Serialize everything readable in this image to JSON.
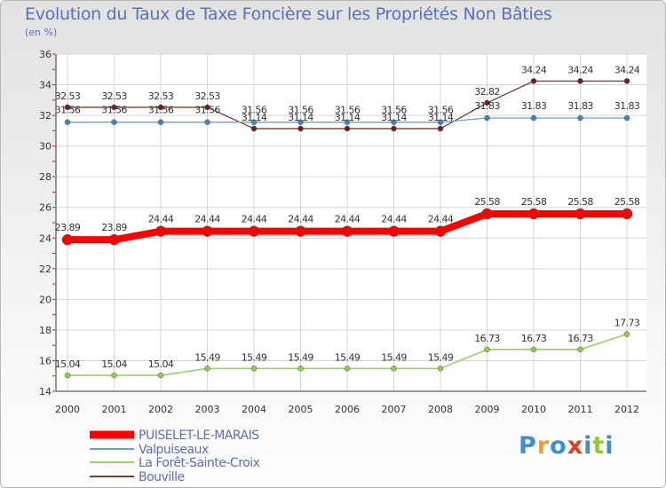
{
  "chart_data": {
    "type": "line",
    "title": "Evolution du Taux de Taxe Foncière sur les Propriétés Non Bâties",
    "ylabel": "(en %)",
    "xlabel": "",
    "x": [
      "2000",
      "2001",
      "2002",
      "2003",
      "2004",
      "2005",
      "2006",
      "2007",
      "2008",
      "2009",
      "2010",
      "2011",
      "2012"
    ],
    "ylim": [
      14,
      36
    ],
    "yticks": [
      14,
      16,
      18,
      20,
      22,
      24,
      26,
      28,
      30,
      32,
      34,
      36
    ],
    "grid": true,
    "legend": "bottom-left",
    "series": [
      {
        "name": "PUISELET-LE-MARAIS",
        "color": "#ff0000",
        "values": [
          23.89,
          23.89,
          24.44,
          24.44,
          24.44,
          24.44,
          24.44,
          24.44,
          24.44,
          25.58,
          25.58,
          25.58,
          25.58
        ],
        "labels": [
          "23.89",
          "23.89",
          "24.44",
          "24.44",
          "24.44",
          "24.44",
          "24.44",
          "24.44",
          "24.44",
          "25.58",
          "25.58",
          "25.58",
          "25.58"
        ]
      },
      {
        "name": "Valpuiseaux",
        "color": "#6a9fd4",
        "values": [
          31.56,
          31.56,
          31.56,
          31.56,
          31.56,
          31.56,
          31.56,
          31.56,
          31.56,
          31.83,
          31.83,
          31.83,
          31.83
        ],
        "labels": [
          "31.56",
          "31.56",
          "31.56",
          "31.56",
          "31.56",
          "31.56",
          "31.56",
          "31.56",
          "31.56",
          "31.83",
          "31.83",
          "31.83",
          "31.83"
        ]
      },
      {
        "name": "La Forêt-Sainte-Croix",
        "color": "#9bd067",
        "values": [
          15.04,
          15.04,
          15.04,
          15.49,
          15.49,
          15.49,
          15.49,
          15.49,
          15.49,
          16.73,
          16.73,
          16.73,
          17.73
        ],
        "labels": [
          "15.04",
          "15.04",
          "15.04",
          "15.49",
          "15.49",
          "15.49",
          "15.49",
          "15.49",
          "15.49",
          "16.73",
          "16.73",
          "16.73",
          "17.73"
        ]
      },
      {
        "name": "Bouville",
        "color": "#7a3b3b",
        "values": [
          32.53,
          32.53,
          32.53,
          32.53,
          31.14,
          31.14,
          31.14,
          31.14,
          31.14,
          32.82,
          34.24,
          34.24,
          34.24
        ],
        "labels": [
          "32.53",
          "32.53",
          "32.53",
          "32.53",
          "31.14",
          "31.14",
          "31.14",
          "31.14",
          "31.14",
          "32.82",
          "34.24",
          "34.24",
          "34.24"
        ]
      }
    ]
  },
  "brand": {
    "letters": [
      "P",
      "r",
      "o",
      "x",
      "i",
      "t",
      "i"
    ],
    "colors": [
      "#3a8fd8",
      "#f0a02a",
      "#3a8fd8",
      "#e04020",
      "#3a8fd8",
      "#9bc43a",
      "#3a8fd8"
    ]
  }
}
